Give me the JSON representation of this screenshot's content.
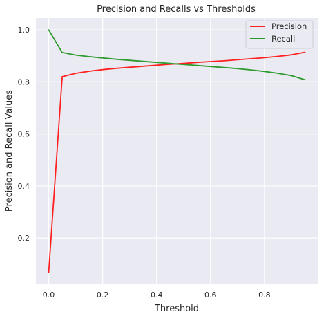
{
  "chart_data": {
    "type": "line",
    "title": "Precision and Recalls vs Thresholds",
    "xlabel": "Threshold",
    "ylabel": "Precision and Recall Values",
    "xlim": [
      -0.0475,
      0.9975
    ],
    "ylim": [
      0.0225,
      1.0455
    ],
    "xticks": [
      0.0,
      0.2,
      0.4,
      0.6,
      0.8
    ],
    "xtick_labels": [
      "0.0",
      "0.2",
      "0.4",
      "0.6",
      "0.8"
    ],
    "yticks": [
      0.2,
      0.4,
      0.6,
      0.8,
      1.0
    ],
    "ytick_labels": [
      "0.2",
      "0.4",
      "0.6",
      "0.8",
      "1.0"
    ],
    "grid": true,
    "legend_position": "top-right",
    "x": [
      0.0,
      0.05,
      0.1,
      0.15,
      0.2,
      0.25,
      0.3,
      0.35,
      0.4,
      0.45,
      0.5,
      0.55,
      0.6,
      0.65,
      0.7,
      0.75,
      0.8,
      0.85,
      0.9,
      0.95
    ],
    "series": [
      {
        "name": "Precision",
        "color": "#ff2020",
        "values": [
          0.068,
          0.82,
          0.833,
          0.841,
          0.847,
          0.852,
          0.856,
          0.86,
          0.864,
          0.868,
          0.871,
          0.875,
          0.878,
          0.881,
          0.885,
          0.889,
          0.893,
          0.898,
          0.904,
          0.914
        ]
      },
      {
        "name": "Recall",
        "color": "#2e9a2e",
        "values": [
          1.0,
          0.913,
          0.903,
          0.897,
          0.892,
          0.887,
          0.883,
          0.879,
          0.875,
          0.871,
          0.867,
          0.863,
          0.859,
          0.855,
          0.851,
          0.846,
          0.84,
          0.833,
          0.824,
          0.808
        ]
      }
    ]
  }
}
